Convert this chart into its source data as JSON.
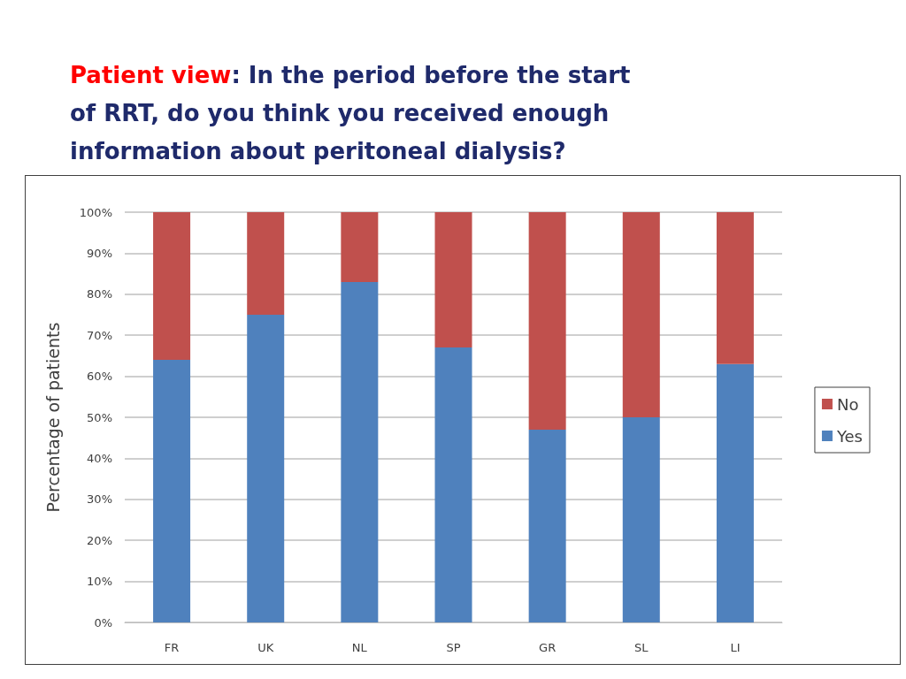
{
  "chart_data": {
    "type": "bar",
    "title": "Patient view: In the period before the start of RRT, do you think you received enough information about peritoneal dialysis?",
    "ylabel": "Percentage of patients",
    "categories": [
      "FR",
      "UK",
      "NL",
      "SP",
      "GR",
      "SL",
      "LI"
    ],
    "series": [
      {
        "name": "Yes",
        "color": "#4f81bd",
        "values": [
          64,
          75,
          83,
          67,
          47,
          50,
          63
        ]
      },
      {
        "name": "No",
        "color": "#c0504d",
        "values": [
          36,
          25,
          17,
          33,
          53,
          50,
          37
        ]
      }
    ],
    "stacked": true,
    "ylim": [
      0,
      100
    ],
    "yticks": [
      {
        "value": 0,
        "label": "0%"
      },
      {
        "value": 10,
        "label": "10%"
      },
      {
        "value": 20,
        "label": "20%"
      },
      {
        "value": 30,
        "label": "30%"
      },
      {
        "value": 40,
        "label": "40%"
      },
      {
        "value": 50,
        "label": "50%"
      },
      {
        "value": 60,
        "label": "60%"
      },
      {
        "value": 70,
        "label": "70%"
      },
      {
        "value": 80,
        "label": "80%"
      },
      {
        "value": 90,
        "label": "90%"
      },
      {
        "value": 100,
        "label": "100%"
      }
    ],
    "grid": "y",
    "legend": "right"
  }
}
